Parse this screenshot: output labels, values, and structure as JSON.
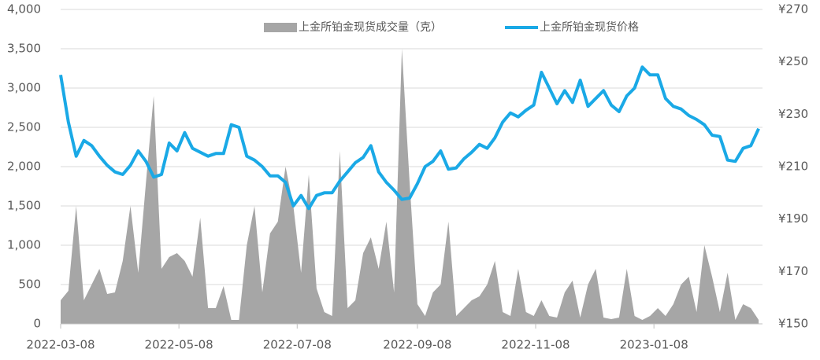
{
  "chart_data": {
    "type": "area-line",
    "x": [
      "2022-03-08",
      "2022-03-12",
      "2022-03-16",
      "2022-03-20",
      "2022-03-24",
      "2022-03-28",
      "2022-04-01",
      "2022-04-05",
      "2022-04-09",
      "2022-04-13",
      "2022-04-17",
      "2022-04-21",
      "2022-04-25",
      "2022-04-29",
      "2022-05-03",
      "2022-05-07",
      "2022-05-11",
      "2022-05-15",
      "2022-05-19",
      "2022-05-23",
      "2022-05-27",
      "2022-05-31",
      "2022-06-04",
      "2022-06-08",
      "2022-06-12",
      "2022-06-16",
      "2022-06-20",
      "2022-06-24",
      "2022-06-28",
      "2022-07-02",
      "2022-07-06",
      "2022-07-10",
      "2022-07-14",
      "2022-07-18",
      "2022-07-22",
      "2022-07-26",
      "2022-07-30",
      "2022-08-03",
      "2022-08-07",
      "2022-08-11",
      "2022-08-15",
      "2022-08-19",
      "2022-08-23",
      "2022-08-27",
      "2022-08-31",
      "2022-09-04",
      "2022-09-08",
      "2022-09-12",
      "2022-09-16",
      "2022-09-20",
      "2022-09-24",
      "2022-09-28",
      "2022-10-02",
      "2022-10-06",
      "2022-10-10",
      "2022-10-14",
      "2022-10-18",
      "2022-10-22",
      "2022-10-26",
      "2022-10-30",
      "2022-11-03",
      "2022-11-07",
      "2022-11-11",
      "2022-11-15",
      "2022-11-19",
      "2022-11-23",
      "2022-11-27",
      "2022-12-01",
      "2022-12-05",
      "2022-12-09",
      "2022-12-13",
      "2022-12-17",
      "2022-12-21",
      "2022-12-25",
      "2022-12-29",
      "2023-01-02",
      "2023-01-06",
      "2023-01-10",
      "2023-01-14",
      "2023-01-18",
      "2023-01-22",
      "2023-01-26",
      "2023-01-30",
      "2023-02-03",
      "2023-02-07",
      "2023-02-11",
      "2023-02-15",
      "2023-02-19",
      "2023-02-23",
      "2023-02-27",
      "2023-03-03"
    ],
    "series": [
      {
        "name": "上金所铂金现货成交量（克）",
        "color": "#a6a6a6",
        "kind": "area",
        "values": [
          300,
          420,
          1500,
          300,
          500,
          700,
          380,
          400,
          800,
          1500,
          650,
          1800,
          2900,
          700,
          850,
          900,
          800,
          600,
          1350,
          200,
          200,
          480,
          50,
          50,
          1000,
          1500,
          400,
          1150,
          1300,
          2000,
          1500,
          650,
          1900,
          450,
          150,
          100,
          2200,
          200,
          300,
          900,
          1100,
          700,
          1300,
          400,
          3500,
          1800,
          250,
          100,
          400,
          500,
          1300,
          100,
          200,
          300,
          350,
          500,
          800,
          150,
          100,
          700,
          150,
          100,
          300,
          100,
          80,
          400,
          550,
          80,
          500,
          700,
          80,
          60,
          80,
          700,
          100,
          50,
          100,
          200,
          100,
          250,
          500,
          600,
          150,
          1000,
          600,
          150,
          650,
          50,
          250,
          200,
          50
        ]
      },
      {
        "name": "上金所铂金现货价格",
        "color": "#1aa9e6",
        "kind": "line",
        "axis": "y2",
        "values": [
          245,
          227,
          214,
          220,
          218,
          214,
          210.5,
          208,
          207,
          210.5,
          216,
          212,
          206,
          207,
          219,
          216,
          223,
          217,
          215.5,
          214,
          215,
          215,
          226,
          225,
          214,
          212.5,
          210,
          206.5,
          206.5,
          204,
          195,
          199,
          194,
          199,
          200,
          200,
          204.5,
          208,
          211.5,
          213.5,
          218,
          208,
          204,
          201,
          197.5,
          198,
          203.5,
          210,
          212,
          216,
          209,
          209.5,
          213,
          215.5,
          218.5,
          217,
          221,
          227,
          230.5,
          229,
          231.5,
          233.5,
          246,
          240,
          234,
          239,
          234.5,
          243,
          233,
          236,
          239,
          233.5,
          231,
          237,
          240,
          248,
          245,
          245,
          236,
          233,
          232,
          229.5,
          228,
          226,
          222,
          221.5,
          212.5,
          212,
          217,
          218,
          224.5
        ]
      }
    ],
    "xlim": [
      "2022-03-08",
      "2023-03-05"
    ],
    "xticks": [
      "2022-03-08",
      "2022-05-08",
      "2022-07-08",
      "2022-09-08",
      "2022-11-08",
      "2023-01-08"
    ],
    "ylim": [
      0,
      4000
    ],
    "yticks": [
      0,
      {
        "value": 500,
        "label": "500"
      },
      {
        "value": 1000,
        "label": "1,000"
      },
      {
        "value": 1500,
        "label": "1,500"
      },
      {
        "value": 2000,
        "label": "2,000"
      },
      {
        "value": 2500,
        "label": "2,500"
      },
      {
        "value": 3000,
        "label": "3,000"
      },
      {
        "value": 3500,
        "label": "3,500"
      },
      {
        "value": 4000,
        "label": "4,000"
      }
    ],
    "y2lim": [
      150,
      270
    ],
    "y2ticks": [
      {
        "value": 150,
        "label": "¥150"
      },
      {
        "value": 170,
        "label": "¥170"
      },
      {
        "value": 190,
        "label": "¥190"
      },
      {
        "value": 210,
        "label": "¥210"
      },
      {
        "value": 230,
        "label": "¥230"
      },
      {
        "value": 250,
        "label": "¥250"
      },
      {
        "value": 270,
        "label": "¥270"
      }
    ],
    "grid": true,
    "legend": "top"
  }
}
